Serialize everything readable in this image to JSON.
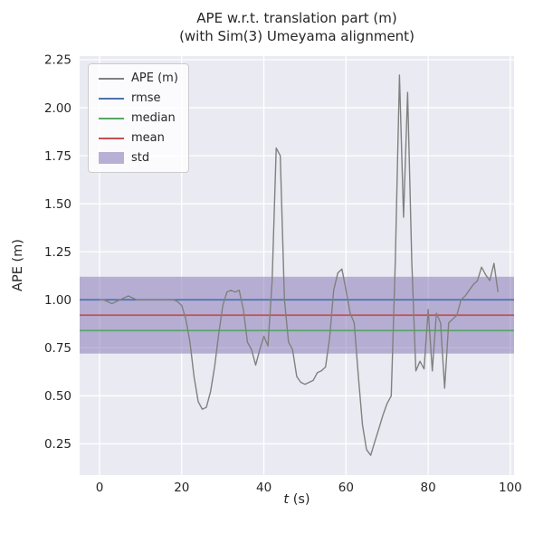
{
  "figure": {
    "title_line1": "APE w.r.t. translation part (m)",
    "title_line2": "(with Sim(3) Umeyama alignment)",
    "xlabel": "t (s)",
    "ylabel": "APE (m)"
  },
  "chart_data": {
    "type": "line",
    "title": "APE w.r.t. translation part (m) (with Sim(3) Umeyama alignment)",
    "xlabel": "t (s)",
    "ylabel": "APE (m)",
    "grid": true,
    "background": "#eaeaf2",
    "grid_color": "#ffffff",
    "legend_position": "upper left",
    "xlim": [
      -4.85,
      100.9
    ],
    "ylim": [
      0.087,
      2.269
    ],
    "x_ticks": [
      0,
      20,
      40,
      60,
      80,
      100
    ],
    "y_ticks": [
      0.25,
      0.5,
      0.75,
      1.0,
      1.25,
      1.5,
      1.75,
      2.0,
      2.25
    ],
    "y_tick_labels": [
      "0.25",
      "0.50",
      "0.75",
      "1.00",
      "1.25",
      "1.50",
      "1.75",
      "2.00",
      "2.25"
    ],
    "x": [
      0,
      1,
      2,
      3,
      4,
      5,
      6,
      7,
      8,
      9,
      10,
      11,
      12,
      13,
      14,
      15,
      16,
      17,
      18,
      19,
      20,
      21,
      22,
      23,
      24,
      25,
      26,
      27,
      28,
      29,
      30,
      31,
      32,
      33,
      34,
      35,
      36,
      37,
      38,
      39,
      40,
      41,
      42,
      43,
      44,
      45,
      46,
      47,
      48,
      49,
      50,
      51,
      52,
      53,
      54,
      55,
      56,
      57,
      58,
      59,
      60,
      61,
      62,
      63,
      64,
      65,
      66,
      67,
      68,
      69,
      70,
      71,
      72,
      73,
      74,
      75,
      76,
      77,
      78,
      79,
      80,
      81,
      82,
      83,
      84,
      85,
      86,
      87,
      88,
      89,
      90,
      91,
      92,
      93,
      94,
      95,
      96,
      97
    ],
    "series": [
      {
        "name": "APE (m)",
        "type": "line",
        "color": "#808080",
        "values": [
          1.0,
          1.0,
          0.99,
          0.98,
          0.99,
          1.0,
          1.01,
          1.02,
          1.01,
          1.0,
          1.0,
          1.0,
          1.0,
          1.0,
          1.0,
          1.0,
          1.0,
          1.0,
          1.0,
          0.99,
          0.97,
          0.9,
          0.78,
          0.6,
          0.47,
          0.43,
          0.44,
          0.52,
          0.65,
          0.82,
          0.97,
          1.04,
          1.05,
          1.04,
          1.05,
          0.95,
          0.78,
          0.74,
          0.66,
          0.74,
          0.81,
          0.76,
          1.1,
          1.79,
          1.75,
          1.0,
          0.78,
          0.74,
          0.6,
          0.57,
          0.56,
          0.57,
          0.58,
          0.62,
          0.63,
          0.65,
          0.8,
          1.05,
          1.14,
          1.16,
          1.05,
          0.93,
          0.88,
          0.6,
          0.35,
          0.22,
          0.19,
          0.26,
          0.33,
          0.4,
          0.46,
          0.5,
          1.2,
          2.17,
          1.43,
          2.08,
          1.2,
          0.63,
          0.68,
          0.64,
          0.95,
          0.63,
          0.93,
          0.88,
          0.54,
          0.88,
          0.9,
          0.92,
          1.0,
          1.02,
          1.05,
          1.08,
          1.1,
          1.17,
          1.13,
          1.1,
          1.19,
          1.04
        ]
      }
    ],
    "stat_lines": [
      {
        "name": "rmse",
        "value": 1.0,
        "color": "#4c72b0"
      },
      {
        "name": "median",
        "value": 0.84,
        "color": "#55a868"
      },
      {
        "name": "mean",
        "value": 0.92,
        "color": "#c44e52"
      }
    ],
    "std_band": {
      "name": "std",
      "low": 0.72,
      "high": 1.12,
      "color": "#8172b2",
      "opacity": 0.5
    },
    "legend": [
      {
        "label": "APE (m)",
        "swatch": "line",
        "color": "#808080"
      },
      {
        "label": "rmse",
        "swatch": "line",
        "color": "#4c72b0"
      },
      {
        "label": "median",
        "swatch": "line",
        "color": "#55a868"
      },
      {
        "label": "mean",
        "swatch": "line",
        "color": "#c44e52"
      },
      {
        "label": "std",
        "swatch": "patch",
        "color": "#8172b2"
      }
    ]
  }
}
